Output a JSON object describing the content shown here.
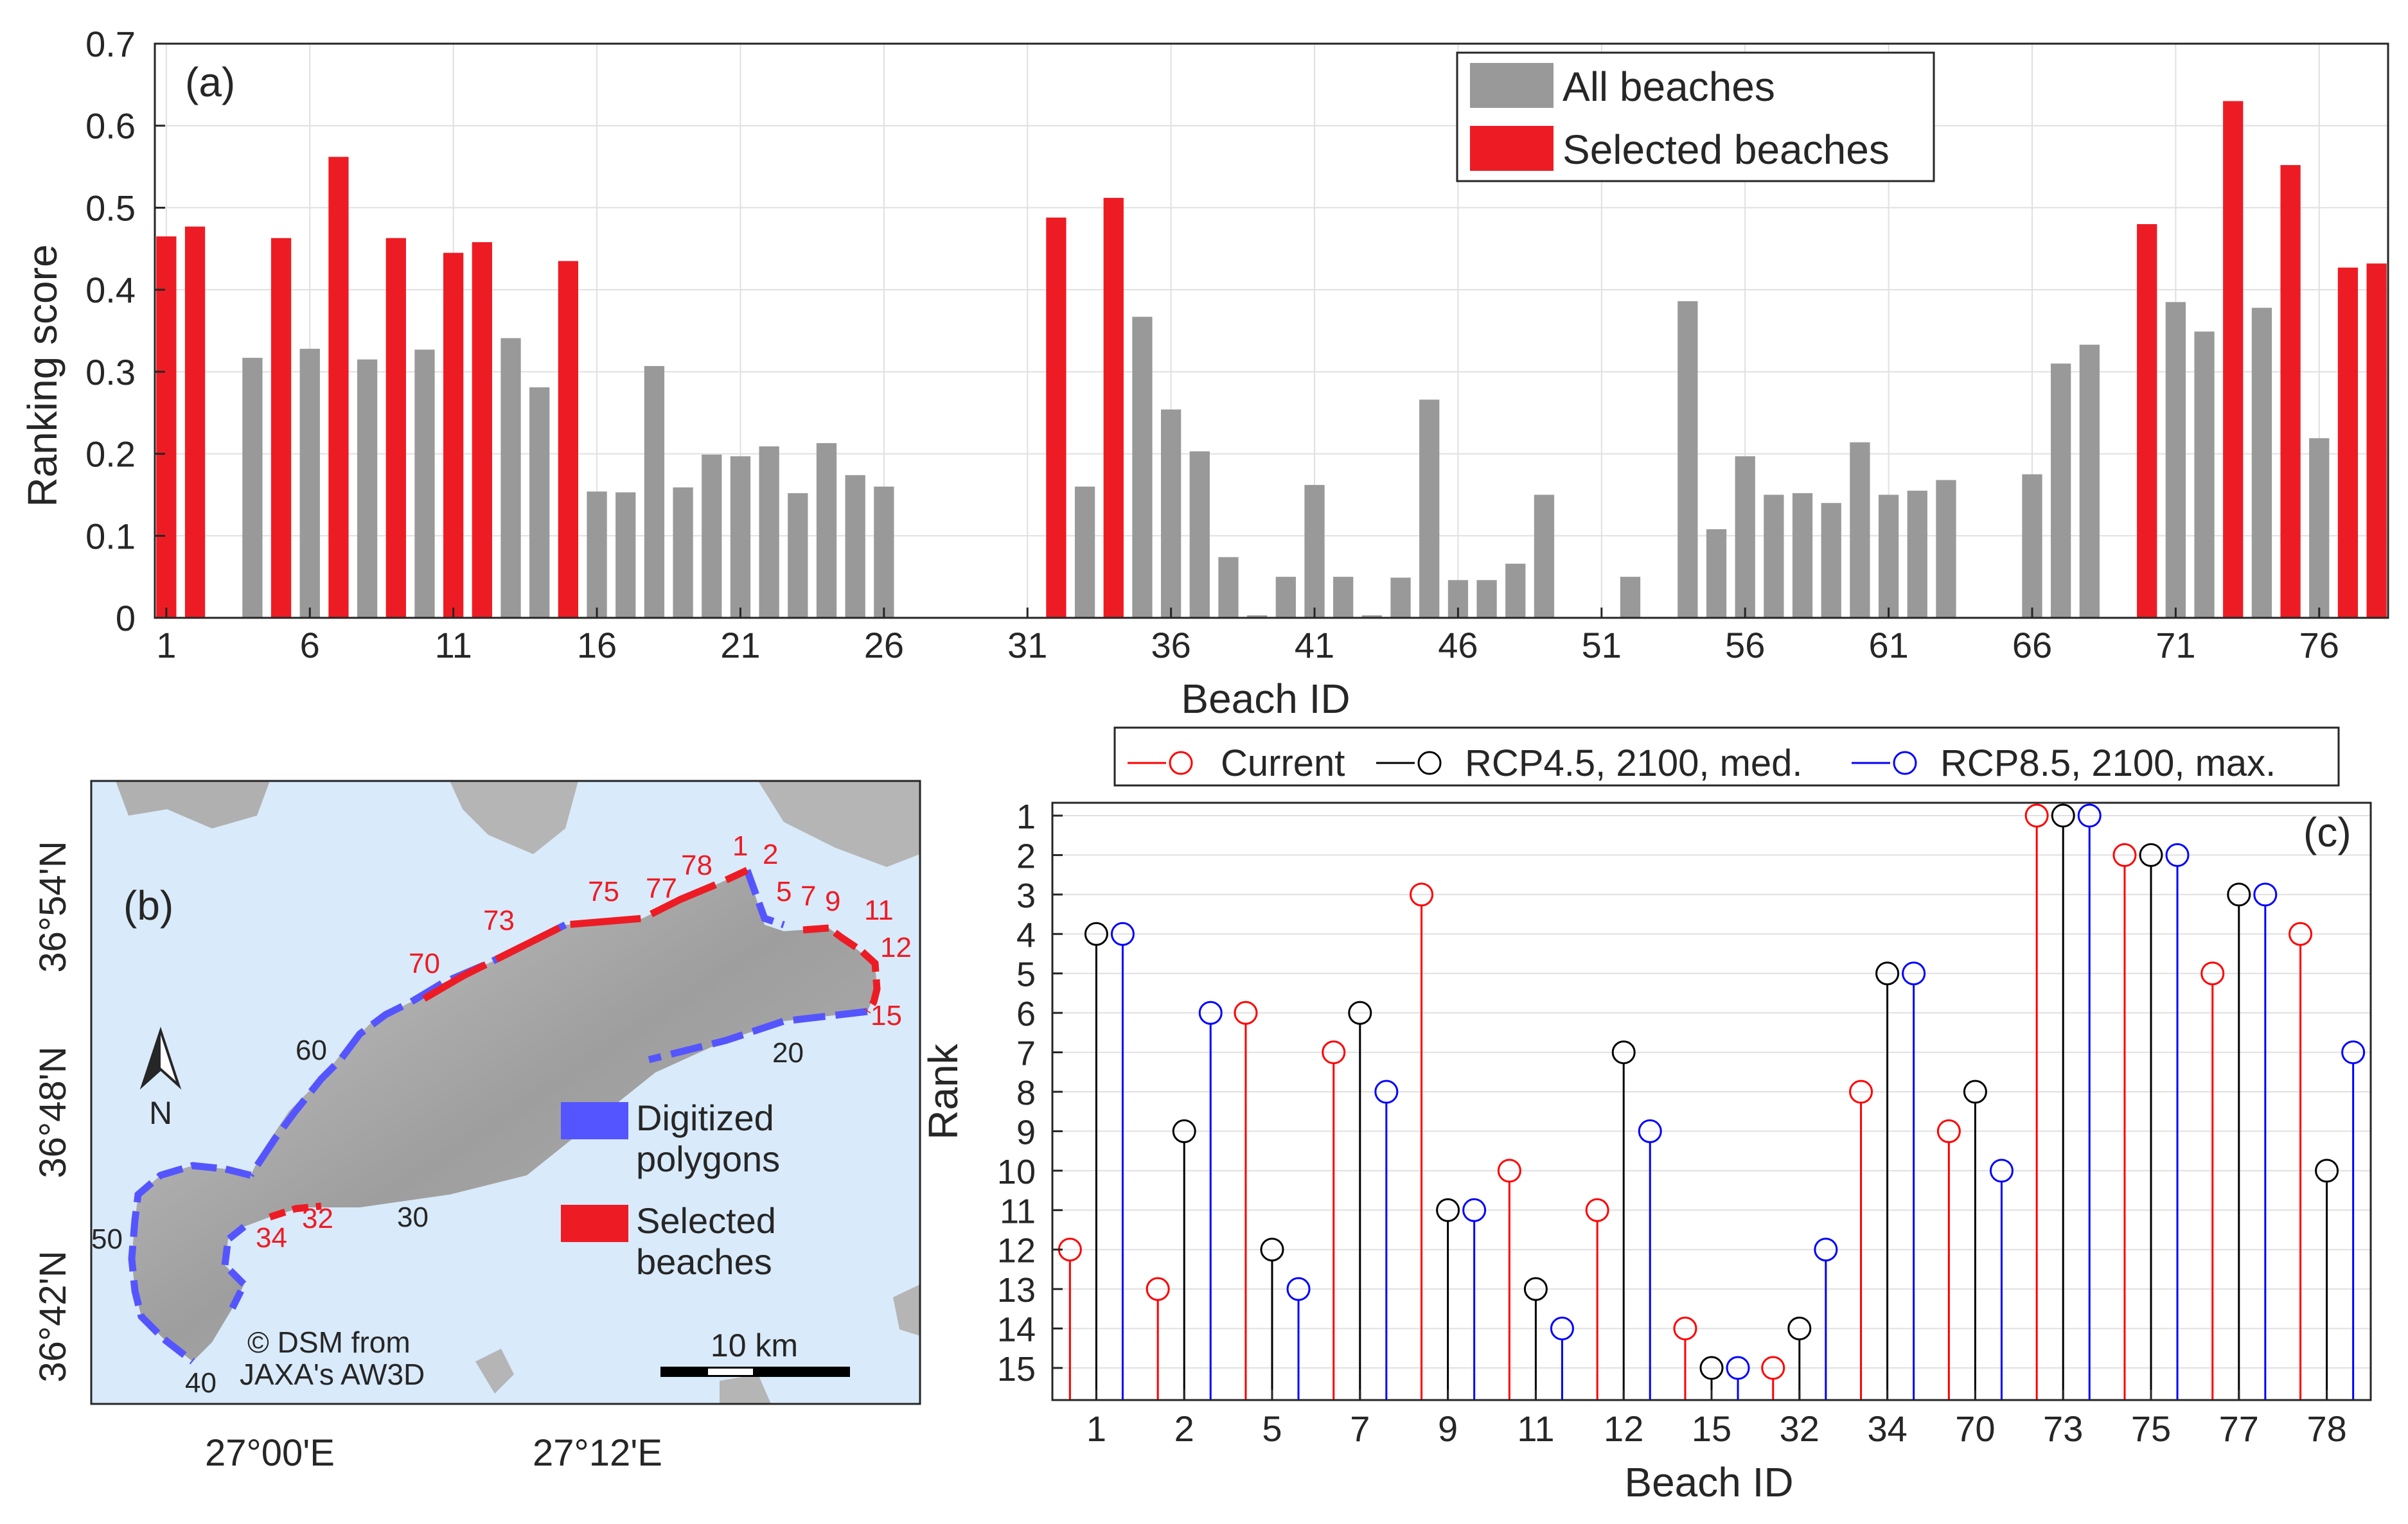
{
  "colors": {
    "all_bar": "#999999",
    "selected_bar": "#ed1c24",
    "grid": "#e0e0e0",
    "map_water": "#d9eafa",
    "map_land": "#a9a9a9",
    "map_digitized": "#5555ff",
    "map_selected": "#ed1c24",
    "current": "#ff0000",
    "rcp45": "#000000",
    "rcp85": "#0000ff"
  },
  "chart_data": [
    {
      "type": "bar",
      "panel_label": "(a)",
      "xlabel": "Beach ID",
      "ylabel": "Ranking score",
      "ylim": [
        0,
        0.7
      ],
      "yticks": [
        "0",
        "0.1",
        "0.2",
        "0.3",
        "0.4",
        "0.5",
        "0.6",
        "0.7"
      ],
      "xticks": [
        "1",
        "6",
        "11",
        "16",
        "21",
        "26",
        "31",
        "36",
        "41",
        "46",
        "51",
        "56",
        "61",
        "66",
        "71",
        "76"
      ],
      "legend": [
        "All beaches",
        "Selected beaches"
      ],
      "legend_position": "top-right",
      "beach_ids": [
        1,
        2,
        3,
        4,
        5,
        6,
        7,
        8,
        9,
        10,
        11,
        12,
        13,
        14,
        15,
        16,
        17,
        18,
        19,
        20,
        21,
        22,
        23,
        24,
        25,
        26,
        27,
        28,
        29,
        30,
        31,
        32,
        33,
        34,
        35,
        36,
        37,
        38,
        39,
        40,
        41,
        42,
        43,
        44,
        45,
        46,
        47,
        48,
        49,
        50,
        51,
        52,
        53,
        54,
        55,
        56,
        57,
        58,
        59,
        60,
        61,
        62,
        63,
        64,
        65,
        66,
        67,
        68,
        69,
        70,
        71,
        72,
        73,
        74,
        75,
        76,
        77,
        78
      ],
      "values": [
        0.465,
        0.477,
        0,
        0.317,
        0.463,
        0.328,
        0.562,
        0.315,
        0.463,
        0.327,
        0.445,
        0.458,
        0.341,
        0.281,
        0.435,
        0.154,
        0.153,
        0.307,
        0.159,
        0.199,
        0.197,
        0.209,
        0.152,
        0.213,
        0.174,
        0.16,
        0,
        0,
        0,
        0,
        0,
        0.488,
        0.16,
        0.512,
        0.367,
        0.254,
        0.203,
        0.074,
        0.003,
        0.05,
        0.162,
        0.05,
        0.003,
        0.049,
        0.266,
        0.046,
        0.046,
        0.066,
        0.15,
        0,
        0,
        0.05,
        0,
        0.386,
        0.108,
        0.197,
        0.15,
        0.152,
        0.14,
        0.214,
        0.15,
        0.155,
        0.168,
        0,
        0,
        0.175,
        0.31,
        0.333,
        0,
        0.48,
        0.385,
        0.349,
        0.63,
        0.378,
        0.552,
        0.219,
        0.427,
        0.432
      ],
      "selected": [
        1,
        2,
        5,
        7,
        9,
        11,
        12,
        15,
        32,
        34,
        70,
        73,
        75,
        77,
        78
      ]
    },
    {
      "type": "map",
      "panel_label": "(b)",
      "lat_labels": [
        "36°54'N",
        "36°48'N",
        "36°42'N"
      ],
      "lon_labels": [
        "27°00'E",
        "27°12'E"
      ],
      "north_label": "N",
      "legend": [
        "Digitized\npolygons",
        "Selected\nbeaches"
      ],
      "legend_lines": [
        [
          "Digitized",
          "polygons"
        ],
        [
          "Selected",
          "beaches"
        ]
      ],
      "scale_label": "10 km",
      "credit_lines": [
        "© DSM from",
        "JAXA's AW3D"
      ],
      "selected_labels": [
        "1",
        "2",
        "5",
        "7",
        "9",
        "11",
        "12",
        "15",
        "32",
        "34",
        "70",
        "73",
        "75",
        "77",
        "78"
      ],
      "other_labels": [
        "20",
        "30",
        "40",
        "50",
        "60"
      ]
    },
    {
      "type": "stem",
      "panel_label": "(c)",
      "xlabel": "Beach ID",
      "ylabel": "Rank",
      "categories": [
        "1",
        "2",
        "5",
        "7",
        "9",
        "11",
        "12",
        "15",
        "32",
        "34",
        "70",
        "73",
        "75",
        "77",
        "78"
      ],
      "y_range": [
        1,
        15
      ],
      "y_reversed": true,
      "yticks": [
        "1",
        "2",
        "3",
        "4",
        "5",
        "6",
        "7",
        "8",
        "9",
        "10",
        "11",
        "12",
        "13",
        "14",
        "15"
      ],
      "series": [
        {
          "name": "Current",
          "values": [
            12,
            13,
            6,
            7,
            3,
            10,
            11,
            14,
            15,
            8,
            9,
            1,
            2,
            5,
            4
          ]
        },
        {
          "name": "RCP4.5, 2100, med.",
          "values": [
            4,
            9,
            12,
            6,
            11,
            13,
            7,
            15,
            14,
            5,
            8,
            1,
            2,
            3,
            10
          ]
        },
        {
          "name": "RCP8.5, 2100, max.",
          "values": [
            4,
            6,
            13,
            8,
            11,
            14,
            9,
            15,
            12,
            5,
            10,
            1,
            2,
            3,
            7
          ]
        }
      ],
      "legend_position": "top"
    }
  ]
}
